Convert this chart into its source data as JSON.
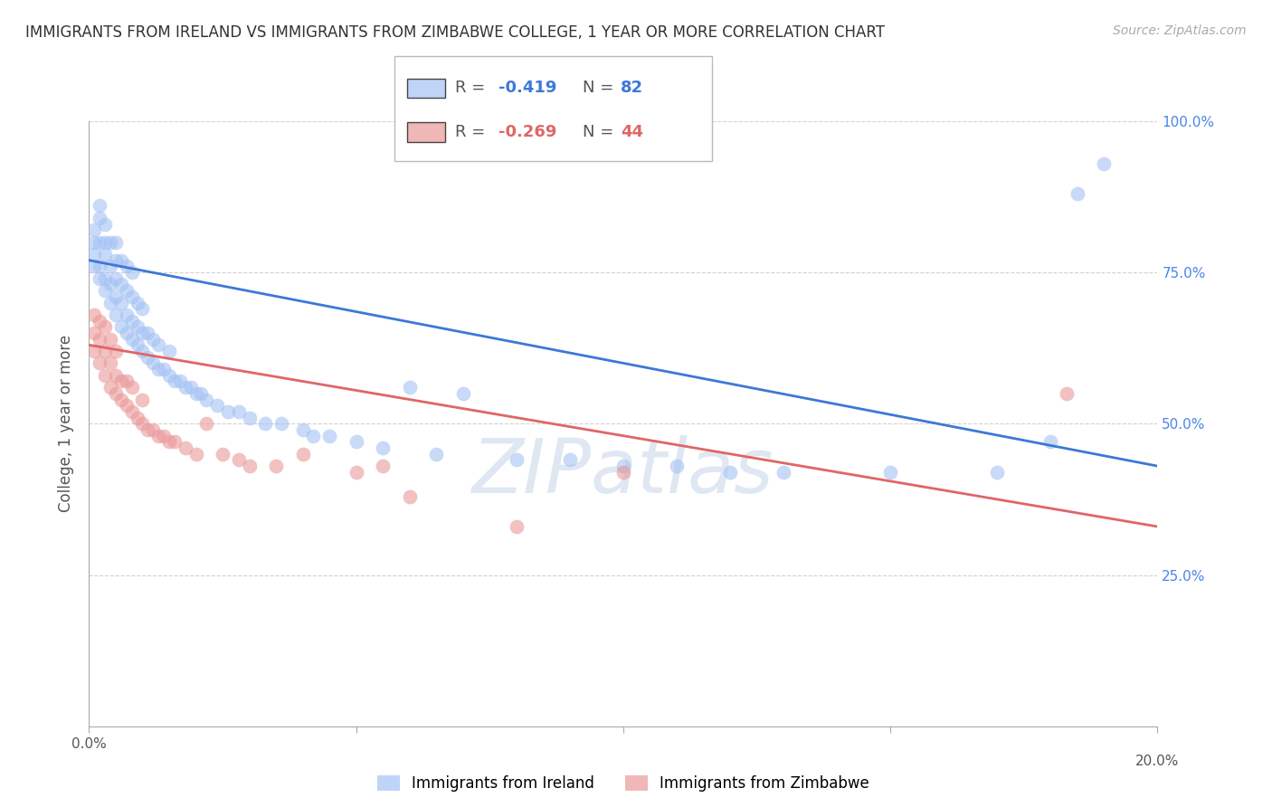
{
  "title": "IMMIGRANTS FROM IRELAND VS IMMIGRANTS FROM ZIMBABWE COLLEGE, 1 YEAR OR MORE CORRELATION CHART",
  "source": "Source: ZipAtlas.com",
  "ylabel": "College, 1 year or more",
  "x_min": 0.0,
  "x_max": 0.2,
  "y_min": 0.0,
  "y_max": 1.0,
  "ireland_color": "#a4c2f4",
  "zimbabwe_color": "#ea9999",
  "ireland_line_color": "#3c78d8",
  "zimbabwe_line_color": "#e06666",
  "ireland_R": -0.419,
  "ireland_N": 82,
  "zimbabwe_R": -0.269,
  "zimbabwe_N": 44,
  "watermark": "ZIPatlas",
  "background_color": "#ffffff",
  "grid_color": "#cccccc",
  "right_axis_color": "#4a86e8",
  "ireland_scatter_x": [
    0.001,
    0.001,
    0.001,
    0.001,
    0.002,
    0.002,
    0.002,
    0.002,
    0.002,
    0.003,
    0.003,
    0.003,
    0.003,
    0.003,
    0.004,
    0.004,
    0.004,
    0.004,
    0.005,
    0.005,
    0.005,
    0.005,
    0.005,
    0.006,
    0.006,
    0.006,
    0.006,
    0.007,
    0.007,
    0.007,
    0.007,
    0.008,
    0.008,
    0.008,
    0.008,
    0.009,
    0.009,
    0.009,
    0.01,
    0.01,
    0.01,
    0.011,
    0.011,
    0.012,
    0.012,
    0.013,
    0.013,
    0.014,
    0.015,
    0.015,
    0.016,
    0.017,
    0.018,
    0.019,
    0.02,
    0.021,
    0.022,
    0.024,
    0.026,
    0.028,
    0.03,
    0.033,
    0.036,
    0.04,
    0.042,
    0.045,
    0.05,
    0.055,
    0.06,
    0.065,
    0.07,
    0.08,
    0.09,
    0.1,
    0.11,
    0.12,
    0.13,
    0.15,
    0.17,
    0.18,
    0.185,
    0.19
  ],
  "ireland_scatter_y": [
    0.76,
    0.78,
    0.8,
    0.82,
    0.74,
    0.76,
    0.8,
    0.84,
    0.86,
    0.72,
    0.74,
    0.78,
    0.8,
    0.83,
    0.7,
    0.73,
    0.76,
    0.8,
    0.68,
    0.71,
    0.74,
    0.77,
    0.8,
    0.66,
    0.7,
    0.73,
    0.77,
    0.65,
    0.68,
    0.72,
    0.76,
    0.64,
    0.67,
    0.71,
    0.75,
    0.63,
    0.66,
    0.7,
    0.62,
    0.65,
    0.69,
    0.61,
    0.65,
    0.6,
    0.64,
    0.59,
    0.63,
    0.59,
    0.58,
    0.62,
    0.57,
    0.57,
    0.56,
    0.56,
    0.55,
    0.55,
    0.54,
    0.53,
    0.52,
    0.52,
    0.51,
    0.5,
    0.5,
    0.49,
    0.48,
    0.48,
    0.47,
    0.46,
    0.56,
    0.45,
    0.55,
    0.44,
    0.44,
    0.43,
    0.43,
    0.42,
    0.42,
    0.42,
    0.42,
    0.47,
    0.88,
    0.93
  ],
  "zimbabwe_scatter_x": [
    0.001,
    0.001,
    0.001,
    0.002,
    0.002,
    0.002,
    0.003,
    0.003,
    0.003,
    0.004,
    0.004,
    0.004,
    0.005,
    0.005,
    0.005,
    0.006,
    0.006,
    0.007,
    0.007,
    0.008,
    0.008,
    0.009,
    0.01,
    0.01,
    0.011,
    0.012,
    0.013,
    0.014,
    0.015,
    0.016,
    0.018,
    0.02,
    0.022,
    0.025,
    0.028,
    0.03,
    0.035,
    0.04,
    0.05,
    0.055,
    0.06,
    0.08,
    0.1,
    0.183
  ],
  "zimbabwe_scatter_y": [
    0.62,
    0.65,
    0.68,
    0.6,
    0.64,
    0.67,
    0.58,
    0.62,
    0.66,
    0.56,
    0.6,
    0.64,
    0.55,
    0.58,
    0.62,
    0.54,
    0.57,
    0.53,
    0.57,
    0.52,
    0.56,
    0.51,
    0.5,
    0.54,
    0.49,
    0.49,
    0.48,
    0.48,
    0.47,
    0.47,
    0.46,
    0.45,
    0.5,
    0.45,
    0.44,
    0.43,
    0.43,
    0.45,
    0.42,
    0.43,
    0.38,
    0.33,
    0.42,
    0.55
  ]
}
